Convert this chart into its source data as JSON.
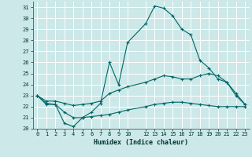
{
  "title": "",
  "xlabel": "Humidex (Indice chaleur)",
  "bg_color": "#cce8e8",
  "grid_color": "#b0d0d0",
  "line_color": "#006666",
  "xlim": [
    -0.5,
    23.5
  ],
  "ylim": [
    20,
    31.5
  ],
  "yticks": [
    20,
    21,
    22,
    23,
    24,
    25,
    26,
    27,
    28,
    29,
    30,
    31
  ],
  "xticks": [
    0,
    1,
    2,
    3,
    4,
    5,
    6,
    7,
    8,
    9,
    10,
    12,
    13,
    14,
    15,
    16,
    17,
    18,
    19,
    20,
    21,
    22,
    23
  ],
  "curve1_x": [
    0,
    1,
    2,
    3,
    4,
    5,
    6,
    7,
    8,
    9,
    10,
    12,
    13,
    14,
    15,
    16,
    17,
    18,
    19,
    20,
    21,
    22,
    23
  ],
  "curve1_y": [
    23.0,
    22.2,
    22.2,
    20.5,
    20.2,
    21.0,
    21.5,
    22.3,
    26.0,
    24.0,
    27.8,
    29.5,
    31.1,
    30.9,
    30.2,
    29.0,
    28.5,
    26.2,
    25.5,
    24.5,
    24.2,
    23.0,
    22.2
  ],
  "curve2_x": [
    0,
    1,
    2,
    3,
    4,
    5,
    6,
    7,
    8,
    9,
    10,
    12,
    13,
    14,
    15,
    16,
    17,
    18,
    19,
    20,
    21,
    22,
    23
  ],
  "curve2_y": [
    23.0,
    22.5,
    22.5,
    22.3,
    22.1,
    22.2,
    22.3,
    22.5,
    23.2,
    23.5,
    23.8,
    24.2,
    24.5,
    24.8,
    24.7,
    24.5,
    24.5,
    24.8,
    25.0,
    24.8,
    24.2,
    23.2,
    22.2
  ],
  "curve3_x": [
    0,
    1,
    2,
    3,
    4,
    5,
    6,
    7,
    8,
    9,
    10,
    12,
    13,
    14,
    15,
    16,
    17,
    18,
    19,
    20,
    21,
    22,
    23
  ],
  "curve3_y": [
    23.0,
    22.3,
    22.2,
    21.5,
    21.0,
    21.0,
    21.1,
    21.2,
    21.3,
    21.5,
    21.7,
    22.0,
    22.2,
    22.3,
    22.4,
    22.4,
    22.3,
    22.2,
    22.1,
    22.0,
    22.0,
    22.0,
    22.0
  ]
}
